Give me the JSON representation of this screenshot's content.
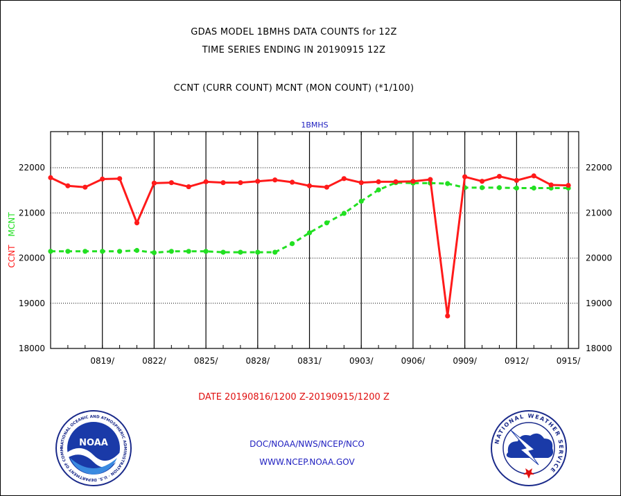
{
  "header": {
    "title_line1": "GDAS MODEL 1BMHS DATA COUNTS for 12Z",
    "title_line2": "TIME SERIES ENDING IN 20190915 12Z",
    "subtitle": "CCNT (CURR COUNT) MCNT (MON COUNT) (*1/100)"
  },
  "footer": {
    "date_range": "DATE 20190816/1200 Z-20190915/1200 Z",
    "org_line": "DOC/NOAA/NWS/NCEP/NCO",
    "url_line": "WWW.NCEP.NOAA.GOV"
  },
  "logos": {
    "noaa_text": "NOAA",
    "noaa_ring": "NATIONAL OCEANIC AND ATMOSPHERIC ADMINISTRATION · U.S. DEPARTMENT OF COMMERCE ·",
    "nws_ring": "NATIONAL WEATHER SERVICE"
  },
  "colors": {
    "ccnt": "#ff1a1a",
    "mcnt": "#22e022",
    "panel_label": "#2020c0",
    "grid": "#000000"
  },
  "chart_data": {
    "type": "line",
    "panel_label": "1BMHS",
    "ylabel_ccnt": "CCNT",
    "ylabel_mcnt": "MCNT",
    "ylim": [
      18000,
      22800
    ],
    "yticks": [
      18000,
      19000,
      20000,
      21000,
      22000
    ],
    "ytick_labels": [
      "18000",
      "19000",
      "20000",
      "21000",
      "22000"
    ],
    "xlim": [
      0,
      30.6
    ],
    "xticks": [
      3,
      6,
      9,
      12,
      15,
      18,
      21,
      24,
      27,
      30
    ],
    "xtick_labels": [
      "0819/",
      "0822/",
      "0825/",
      "0828/",
      "0831/",
      "0903/",
      "0906/",
      "0909/",
      "0912/",
      "0915/"
    ],
    "grid": true,
    "series": [
      {
        "name": "CCNT",
        "style": "solid",
        "values": [
          21780,
          21600,
          21570,
          21750,
          21760,
          20780,
          21660,
          21670,
          21580,
          21690,
          21670,
          21670,
          21700,
          21730,
          21680,
          21600,
          21570,
          21760,
          21670,
          21690,
          21690,
          21700,
          21740,
          18720,
          21800,
          21700,
          21810,
          21720,
          21820,
          21620,
          21610
        ]
      },
      {
        "name": "MCNT",
        "style": "dashed",
        "values": [
          20150,
          20150,
          20150,
          20150,
          20150,
          20170,
          20120,
          20150,
          20150,
          20150,
          20130,
          20130,
          20130,
          20130,
          20320,
          20560,
          20780,
          20990,
          21260,
          21510,
          21670,
          21660,
          21660,
          21650,
          21560,
          21560,
          21560,
          21550,
          21550,
          21550,
          21550
        ]
      }
    ]
  }
}
